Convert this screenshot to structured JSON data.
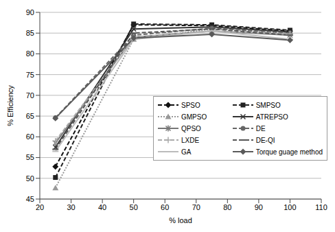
{
  "chart_data": {
    "type": "line",
    "x_label": "% load",
    "y_label": "% Efficiency",
    "x": [
      25,
      50,
      75,
      100
    ],
    "xlim": [
      20,
      110
    ],
    "xticks": [
      20,
      30,
      40,
      50,
      60,
      70,
      80,
      90,
      100,
      110
    ],
    "ylim": [
      45,
      90
    ],
    "yticks": [
      45,
      50,
      55,
      60,
      65,
      70,
      75,
      80,
      85,
      90
    ],
    "grid": true,
    "legend": "bottom",
    "series": [
      {
        "name": "SPSO",
        "color": "#111111",
        "marker": "diamond",
        "line_style": "dashed",
        "values": [
          52.8,
          87,
          86.8,
          85.5
        ]
      },
      {
        "name": "SMPSO",
        "color": "#222222",
        "marker": "square",
        "line_style": "dashed",
        "values": [
          50.2,
          87.2,
          87,
          85.7
        ]
      },
      {
        "name": "GMPSO",
        "color": "#999999",
        "marker": "triangle",
        "line_style": "dotted",
        "values": [
          47.7,
          83.5,
          86,
          85
        ]
      },
      {
        "name": "ATREPSO",
        "color": "#333333",
        "marker": "cross",
        "line_style": "solid",
        "values": [
          57.5,
          86,
          86.5,
          85.3
        ]
      },
      {
        "name": "QPSO",
        "color": "#777777",
        "marker": "star",
        "line_style": "solid",
        "values": [
          58.5,
          84,
          85.5,
          84.5
        ]
      },
      {
        "name": "DE",
        "color": "#666666",
        "marker": "circle",
        "line_style": "dashed",
        "values": [
          64.6,
          84.5,
          86.2,
          85
        ]
      },
      {
        "name": "LXDE",
        "color": "#aaaaaa",
        "marker": "plus",
        "line_style": "dashed",
        "values": [
          59,
          84,
          85.5,
          84.8
        ]
      },
      {
        "name": "DE-QI",
        "color": "#555555",
        "marker": "line",
        "line_style": "dashed",
        "values": [
          57,
          85,
          86,
          84.5
        ]
      },
      {
        "name": "GA",
        "color": "#bbbbbb",
        "marker": "line",
        "line_style": "solid",
        "values": [
          56.5,
          83.5,
          85.5,
          83.5
        ]
      },
      {
        "name": "Torque guage method",
        "color": "#5a5a5a",
        "marker": "diamond",
        "line_style": "solid",
        "values": [
          64.5,
          83.8,
          84.7,
          83.3
        ]
      }
    ]
  }
}
